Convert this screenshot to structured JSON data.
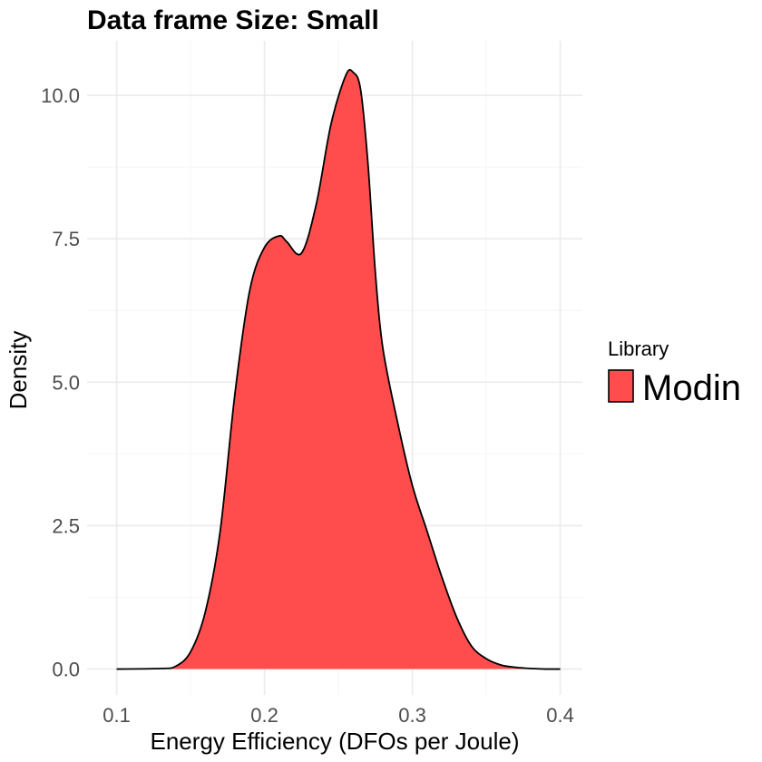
{
  "chart_data": {
    "type": "area",
    "subtype": "density",
    "title": "Data frame Size: Small",
    "xlabel": "Energy Efficiency (DFOs per Joule)",
    "ylabel": "Density",
    "xlim": [
      0.08,
      0.415
    ],
    "ylim": [
      -0.45,
      10.95
    ],
    "x_ticks": [
      0.1,
      0.2,
      0.3,
      0.4
    ],
    "x_tick_labels": [
      "0.1",
      "0.2",
      "0.3",
      "0.4"
    ],
    "y_ticks": [
      0.0,
      2.5,
      5.0,
      7.5,
      10.0
    ],
    "y_tick_labels": [
      "0.0",
      "2.5",
      "5.0",
      "7.5",
      "10.0"
    ],
    "grid": true,
    "legend": {
      "title": "Library",
      "position": "right",
      "entries": [
        {
          "label": "Modin",
          "color": "#ff4d4d"
        }
      ]
    },
    "series": [
      {
        "name": "Modin",
        "fill": "#ff4d4d",
        "stroke": "#000000",
        "x": [
          0.1,
          0.13,
          0.14,
          0.15,
          0.16,
          0.17,
          0.18,
          0.19,
          0.2,
          0.21,
          0.215,
          0.225,
          0.235,
          0.245,
          0.255,
          0.26,
          0.265,
          0.27,
          0.275,
          0.28,
          0.29,
          0.3,
          0.31,
          0.32,
          0.33,
          0.34,
          0.35,
          0.36,
          0.37,
          0.38,
          0.39,
          0.4
        ],
        "y": [
          0.0,
          0.01,
          0.05,
          0.3,
          1.0,
          2.4,
          4.8,
          6.6,
          7.35,
          7.55,
          7.45,
          7.25,
          8.1,
          9.5,
          10.35,
          10.4,
          10.1,
          8.8,
          6.9,
          5.6,
          4.3,
          3.2,
          2.4,
          1.6,
          0.9,
          0.4,
          0.18,
          0.07,
          0.03,
          0.01,
          0.0,
          0.0
        ]
      }
    ]
  }
}
